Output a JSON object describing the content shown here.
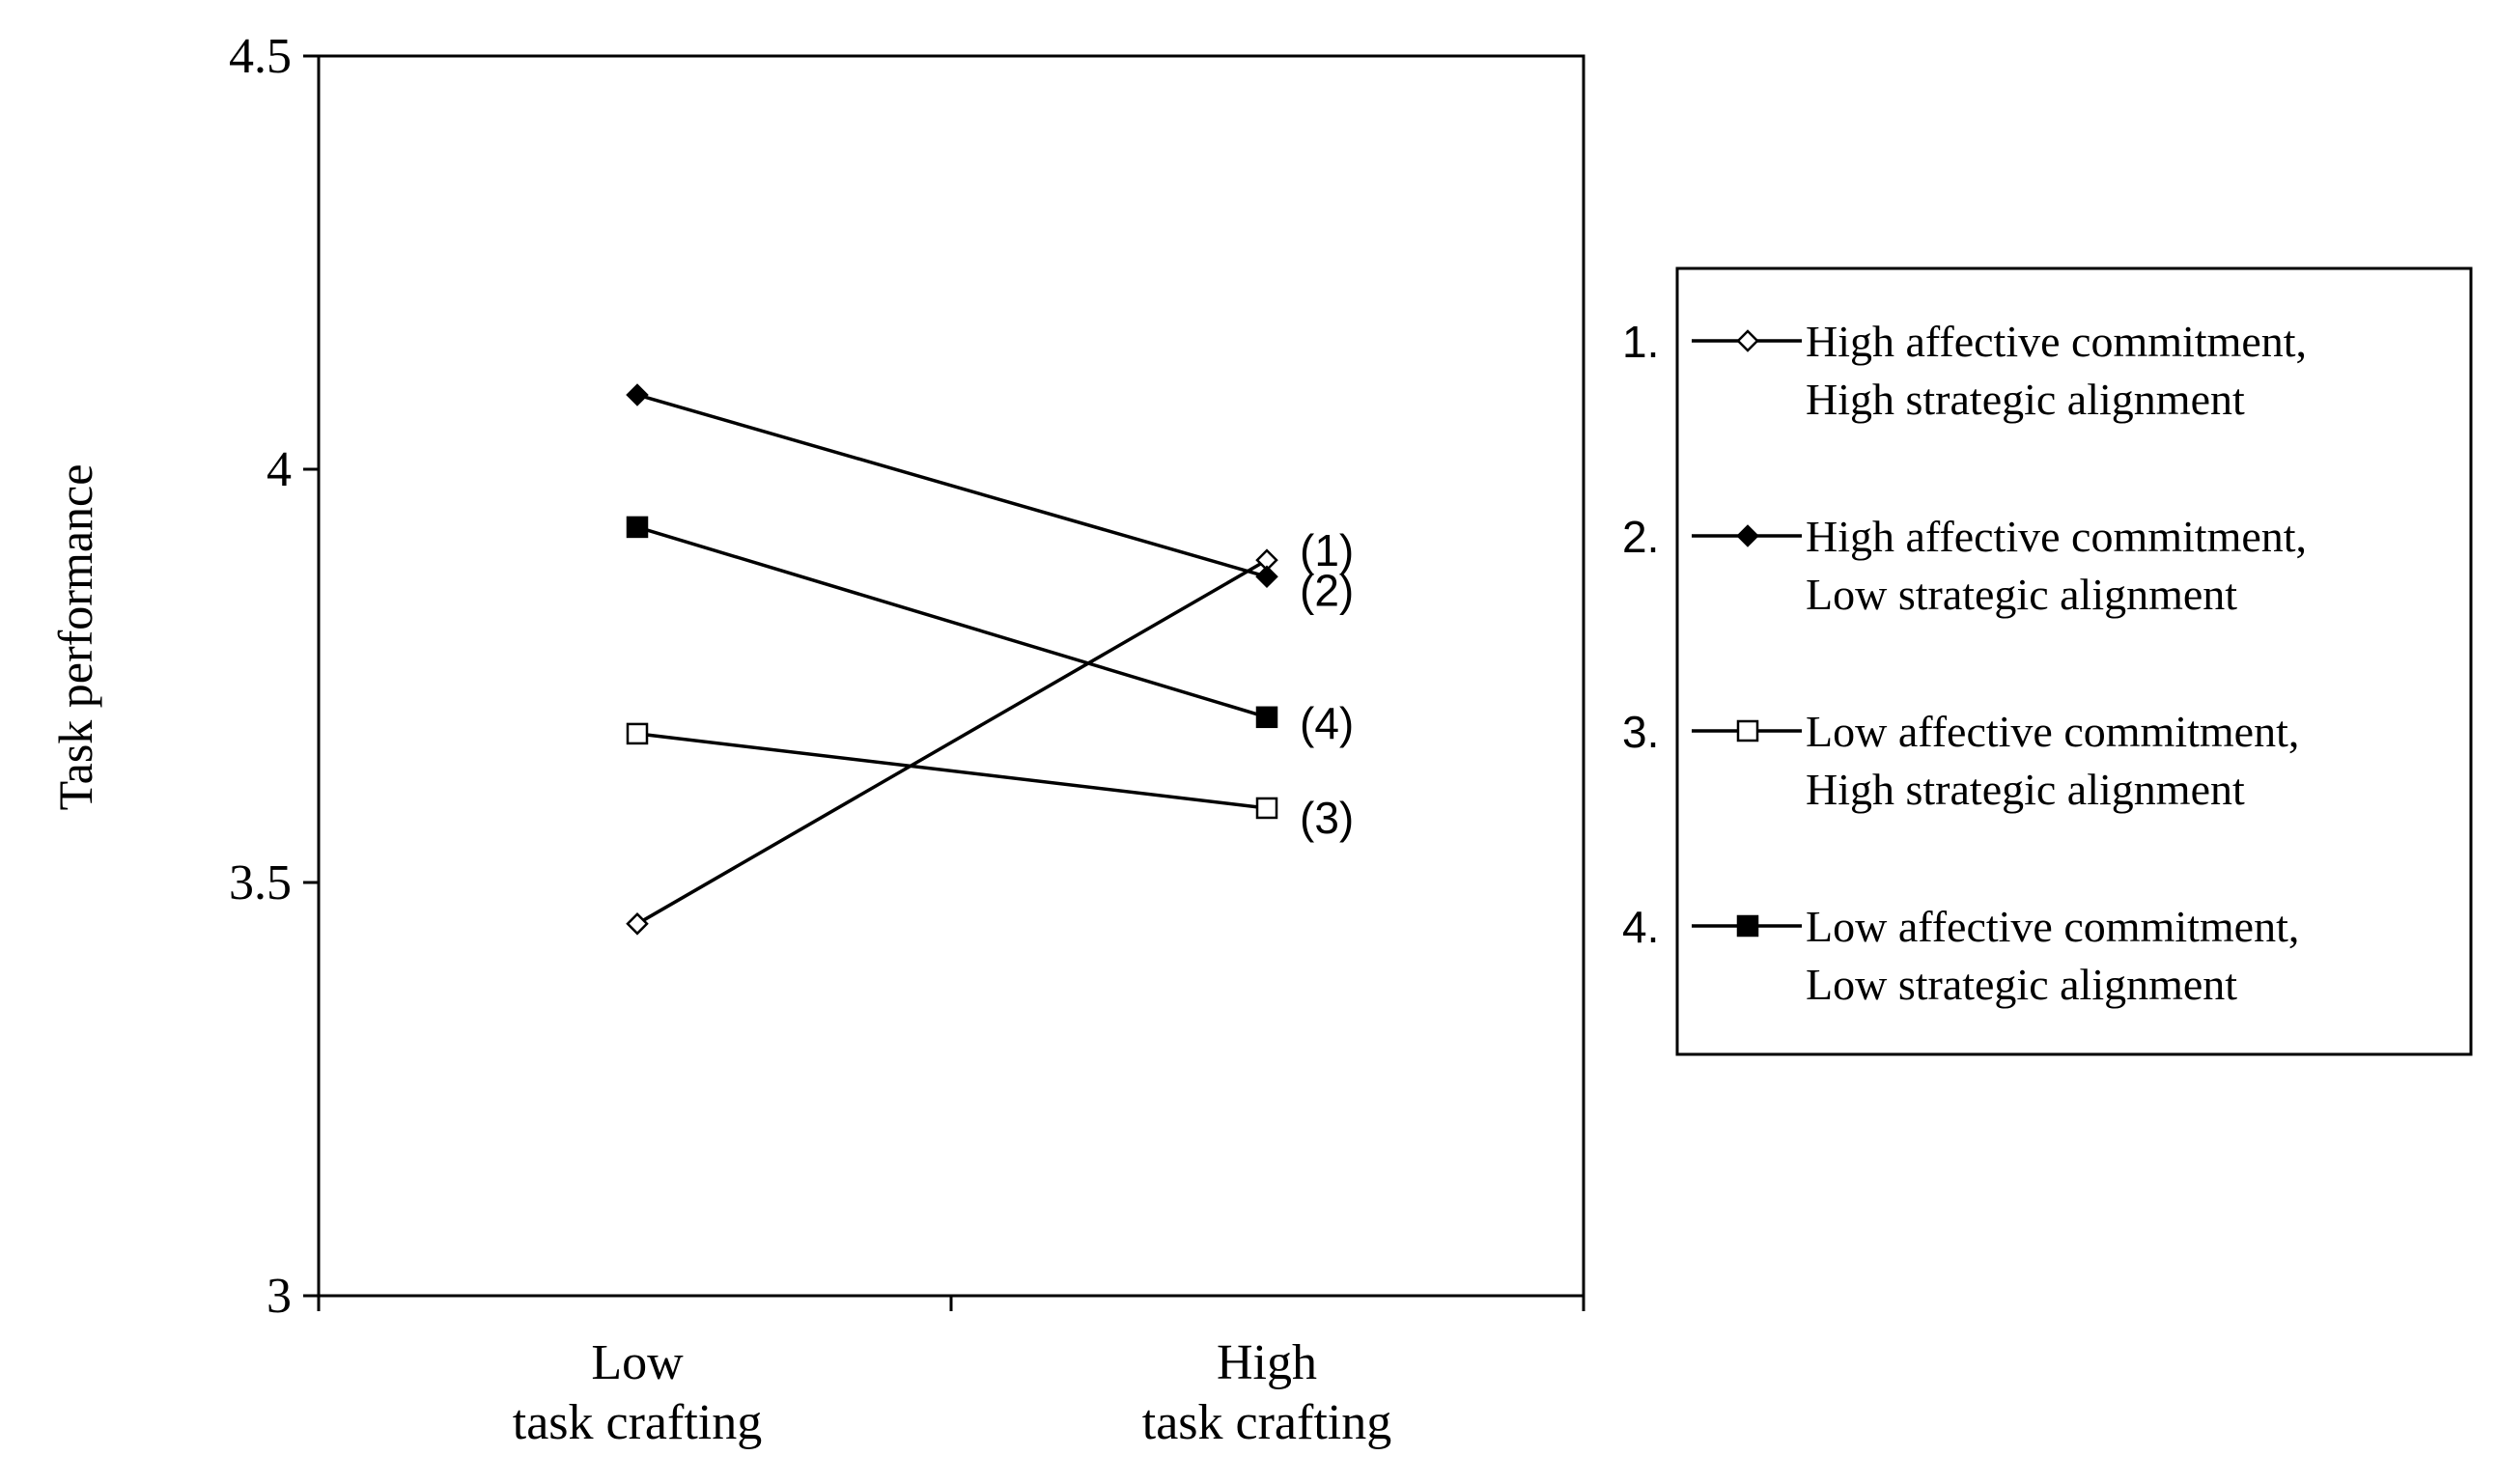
{
  "chart_data": {
    "type": "line",
    "title": "",
    "xlabel": "",
    "ylabel": "Task performance",
    "ylim": [
      3,
      4.5
    ],
    "yticks": [
      "3",
      "3.5",
      "4",
      "4.5"
    ],
    "categories": [
      [
        "Low",
        "task crafting"
      ],
      [
        "High",
        "task crafting"
      ]
    ],
    "grid": false,
    "legend_position": "right",
    "series": [
      {
        "number": "1.",
        "end_label": "(1)",
        "legend_lines": [
          "High affective commitment,",
          "High strategic alignment"
        ],
        "marker": "diamond-open",
        "values": [
          3.45,
          3.89
        ]
      },
      {
        "number": "2.",
        "end_label": "(2)",
        "legend_lines": [
          "High affective commitment,",
          "Low strategic alignment"
        ],
        "marker": "diamond-filled",
        "values": [
          4.09,
          3.87
        ]
      },
      {
        "number": "3.",
        "end_label": "(3)",
        "legend_lines": [
          "Low affective commitment,",
          "High strategic alignment"
        ],
        "marker": "square-open",
        "values": [
          3.68,
          3.59
        ]
      },
      {
        "number": "4.",
        "end_label": "(4)",
        "legend_lines": [
          "Low affective commitment,",
          "Low strategic alignment"
        ],
        "marker": "square-filled",
        "values": [
          3.93,
          3.7
        ]
      }
    ],
    "colors": {
      "line": "#000000",
      "background": "#ffffff"
    }
  }
}
